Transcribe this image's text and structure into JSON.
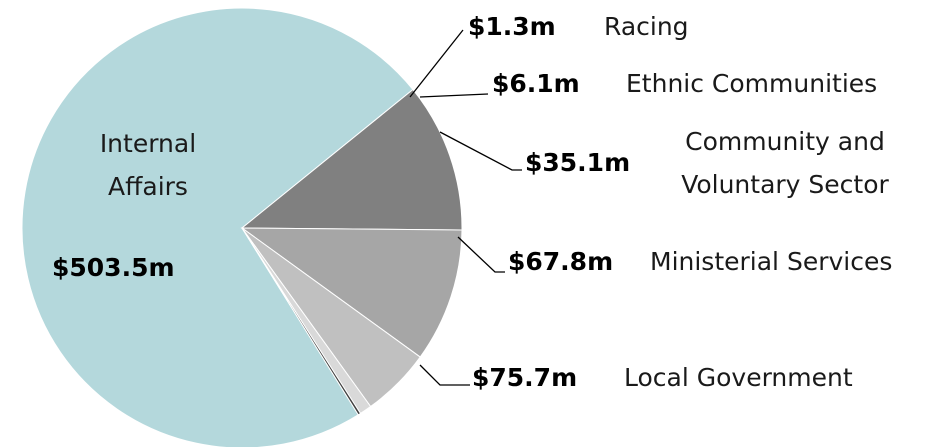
{
  "chart_data": {
    "type": "pie",
    "categories": [
      "Internal Affairs",
      "Local Government",
      "Ministerial Services",
      "Community and Voluntary Sector",
      "Ethnic Communities",
      "Racing"
    ],
    "values": [
      503.5,
      75.7,
      67.8,
      35.1,
      6.1,
      1.3
    ],
    "value_labels": [
      "$503.5m",
      "$75.7m",
      "$67.8m",
      "$35.1m",
      "$6.1m",
      "$1.3m"
    ],
    "colors": [
      "#b4d8dc",
      "#808080",
      "#a6a6a6",
      "#c0c0c0",
      "#d9d9d9",
      "#404040"
    ]
  }
}
